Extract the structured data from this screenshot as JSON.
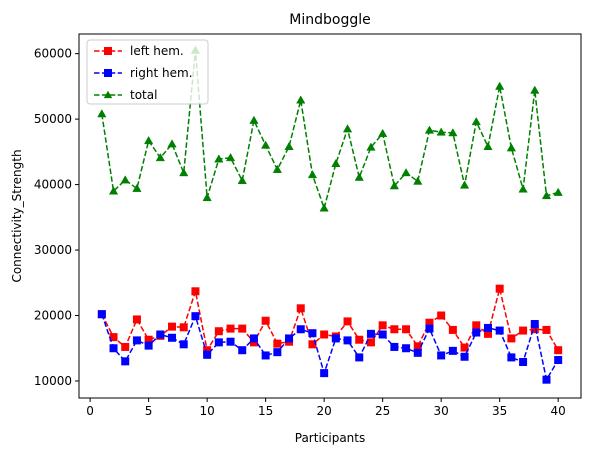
{
  "chart_data": {
    "type": "line",
    "title": "Mindboggle",
    "xlabel": "Participants",
    "ylabel": "Connectivity_Strength",
    "xlim": [
      -0.95,
      41.95
    ],
    "ylim": [
      7400,
      63000
    ],
    "xticks": [
      0,
      5,
      10,
      15,
      20,
      25,
      30,
      35,
      40
    ],
    "yticks": [
      10000,
      20000,
      30000,
      40000,
      50000,
      60000
    ],
    "grid": false,
    "legend_position": "top-left",
    "x": [
      1,
      2,
      3,
      4,
      5,
      6,
      7,
      8,
      9,
      10,
      11,
      12,
      13,
      14,
      15,
      16,
      17,
      18,
      19,
      20,
      21,
      22,
      23,
      24,
      25,
      26,
      27,
      28,
      29,
      30,
      31,
      32,
      33,
      34,
      35,
      36,
      37,
      38,
      39,
      40
    ],
    "series": [
      {
        "name": "left hem.",
        "color": "#ff0000",
        "marker": "square",
        "linestyle": "dashed",
        "values": [
          20200,
          16700,
          15200,
          19400,
          16300,
          16900,
          18300,
          18200,
          23700,
          14700,
          17600,
          18000,
          18000,
          15900,
          19200,
          15700,
          16000,
          21100,
          15600,
          17100,
          16800,
          19100,
          16300,
          15900,
          18500,
          17900,
          17900,
          15300,
          18900,
          20000,
          17800,
          15100,
          18500,
          17200,
          24100,
          16500,
          17700,
          17900,
          17800,
          14700
        ]
      },
      {
        "name": "right hem.",
        "color": "#0000ff",
        "marker": "square",
        "linestyle": "dashed",
        "values": [
          20200,
          15000,
          13000,
          16200,
          15400,
          17100,
          16600,
          15600,
          19900,
          14000,
          15900,
          16000,
          14700,
          16500,
          13900,
          14400,
          16500,
          17900,
          17300,
          11200,
          16500,
          16200,
          13600,
          17200,
          17100,
          15200,
          15000,
          14300,
          18000,
          13900,
          14600,
          13700,
          17400,
          18100,
          17700,
          13600,
          12900,
          18700,
          10200,
          13200
        ]
      },
      {
        "name": "total",
        "color": "#008000",
        "marker": "triangle",
        "linestyle": "dashed",
        "values": [
          50800,
          39000,
          40700,
          39400,
          46700,
          44100,
          46200,
          41800,
          60500,
          38000,
          43900,
          44100,
          40600,
          49800,
          46000,
          42300,
          45800,
          52900,
          41500,
          36400,
          43200,
          48500,
          41100,
          45700,
          47800,
          39800,
          41800,
          40500,
          48300,
          48000,
          47900,
          39900,
          49600,
          45800,
          55000,
          45600,
          39300,
          54400,
          38300,
          38800
        ]
      }
    ]
  }
}
